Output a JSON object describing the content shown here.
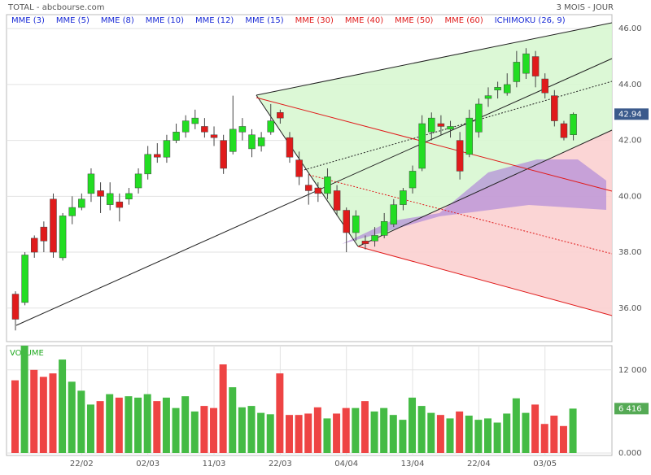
{
  "header": {
    "title": "TOTAL - abcbourse.com",
    "period": "3 MOIS - JOUR"
  },
  "legend": [
    {
      "name": "MME (3)",
      "color": "#1a2bd6"
    },
    {
      "name": "MME (5)",
      "color": "#1a2bd6"
    },
    {
      "name": "MME (8)",
      "color": "#1a2bd6"
    },
    {
      "name": "MME (10)",
      "color": "#1a2bd6"
    },
    {
      "name": "MME (12)",
      "color": "#1a2bd6"
    },
    {
      "name": "MME (15)",
      "color": "#1a2bd6"
    },
    {
      "name": "MME (30)",
      "color": "#e01b1b"
    },
    {
      "name": "MME (40)",
      "color": "#e01b1b"
    },
    {
      "name": "MME (50)",
      "color": "#e01b1b"
    },
    {
      "name": "MME (60)",
      "color": "#e01b1b"
    },
    {
      "name": "ICHIMOKU (26, 9)",
      "color": "#1a2bd6"
    }
  ],
  "chart_data": [
    {
      "type": "candlestick",
      "categories": [
        null,
        null,
        null,
        null,
        null,
        null,
        null,
        "22/02",
        null,
        null,
        null,
        null,
        null,
        null,
        "02/03",
        null,
        null,
        null,
        null,
        null,
        null,
        "11/03",
        null,
        null,
        null,
        null,
        null,
        null,
        "22/03",
        null,
        null,
        null,
        null,
        null,
        null,
        "04/04",
        null,
        null,
        null,
        null,
        null,
        null,
        "13/04",
        null,
        null,
        null,
        null,
        null,
        null,
        "22/04",
        null,
        null,
        null,
        null,
        null,
        null,
        "03/05",
        null,
        null,
        null
      ],
      "open": [
        36.5,
        36.2,
        38.5,
        38.9,
        39.9,
        37.8,
        39.3,
        39.6,
        40.1,
        40.2,
        39.7,
        39.8,
        39.9,
        40.3,
        40.8,
        41.5,
        41.4,
        42.0,
        42.3,
        42.6,
        42.5,
        42.2,
        42.0,
        41.6,
        42.3,
        41.7,
        41.8,
        42.3,
        43.0,
        42.1,
        41.3,
        40.4,
        40.3,
        40.1,
        40.2,
        39.5,
        38.7,
        38.4,
        38.4,
        38.6,
        39.0,
        39.7,
        40.3,
        41.0,
        42.3,
        42.6,
        42.4,
        42.0,
        41.5,
        42.3,
        43.5,
        43.8,
        43.7,
        44.1,
        44.4,
        45.0,
        44.2,
        43.6,
        42.6,
        42.2
      ],
      "high": [
        36.6,
        38.0,
        38.6,
        39.1,
        40.1,
        39.4,
        40.0,
        40.1,
        41.0,
        40.5,
        40.5,
        40.1,
        40.3,
        41.0,
        41.8,
        41.9,
        42.2,
        42.6,
        42.9,
        43.1,
        42.8,
        42.5,
        42.2,
        43.6,
        42.8,
        42.4,
        42.3,
        43.3,
        43.1,
        42.3,
        41.6,
        40.8,
        40.5,
        41.0,
        40.4,
        39.6,
        39.5,
        38.6,
        38.9,
        39.4,
        39.9,
        40.3,
        41.1,
        42.9,
        43.0,
        42.9,
        42.7,
        42.3,
        43.1,
        43.5,
        43.9,
        44.1,
        44.4,
        45.2,
        45.3,
        45.2,
        44.4,
        43.8,
        42.7,
        43.0
      ],
      "low": [
        35.2,
        36.1,
        37.8,
        38.0,
        37.8,
        37.7,
        39.0,
        39.5,
        39.8,
        39.4,
        39.5,
        39.1,
        39.7,
        40.1,
        40.6,
        41.2,
        41.2,
        41.9,
        42.1,
        42.4,
        42.1,
        41.8,
        40.8,
        41.5,
        42.0,
        41.4,
        41.6,
        42.2,
        42.6,
        41.2,
        40.4,
        39.7,
        39.8,
        39.9,
        39.3,
        38.0,
        38.4,
        38.1,
        38.2,
        38.5,
        38.9,
        39.5,
        40.1,
        40.9,
        42.0,
        42.2,
        42.1,
        40.6,
        41.4,
        42.1,
        43.2,
        43.5,
        43.6,
        43.9,
        44.2,
        43.9,
        43.5,
        42.5,
        42.0,
        42.0
      ],
      "close": [
        35.6,
        37.9,
        38.0,
        38.4,
        38.0,
        39.3,
        39.6,
        39.9,
        40.8,
        40.0,
        40.1,
        39.6,
        40.1,
        40.8,
        41.5,
        41.4,
        42.0,
        42.3,
        42.7,
        42.8,
        42.3,
        42.1,
        41.0,
        42.4,
        42.5,
        42.2,
        42.1,
        42.7,
        42.8,
        41.4,
        40.7,
        40.2,
        40.1,
        40.7,
        39.5,
        38.7,
        39.3,
        38.3,
        38.6,
        39.1,
        39.7,
        40.2,
        40.9,
        42.6,
        42.8,
        42.5,
        42.5,
        40.9,
        42.8,
        43.3,
        43.6,
        43.9,
        44.0,
        44.8,
        45.1,
        44.3,
        43.7,
        42.7,
        42.1,
        42.94
      ],
      "up_color": "#22dd22",
      "down_color": "#e01b1b",
      "ylim": [
        34.8,
        46.5
      ],
      "yticks": [
        {
          "value": 36,
          "label": "36.00"
        },
        {
          "value": 38,
          "label": "38.00"
        },
        {
          "value": 40,
          "label": "40.00"
        },
        {
          "value": 42,
          "label": "42.00"
        },
        {
          "value": 44,
          "label": "44.00"
        },
        {
          "value": 46,
          "label": "46.00"
        }
      ],
      "last_price": {
        "value": 42.94,
        "label": "42.94"
      },
      "grid": true
    },
    {
      "type": "volume",
      "title": "VOLUME",
      "values": [
        10500,
        15500,
        12000,
        11000,
        11500,
        13500,
        10300,
        9000,
        7000,
        7500,
        8500,
        8000,
        8200,
        8000,
        8500,
        7500,
        8000,
        6500,
        8200,
        6000,
        6800,
        6500,
        12800,
        9500,
        6600,
        6800,
        5800,
        5600,
        11500,
        5500,
        5500,
        5700,
        6600,
        5000,
        5700,
        6500,
        6500,
        7500,
        6000,
        6500,
        5500,
        4800,
        8000,
        6800,
        5800,
        5500,
        5000,
        6000,
        5400,
        4800,
        5000,
        4400,
        5700,
        7900,
        5800,
        7000,
        4200,
        5400,
        3900,
        6416
      ],
      "ylim": [
        0,
        15500
      ],
      "yticks": [
        {
          "value": 0,
          "label": "0.000"
        },
        {
          "value": 12000,
          "label": "12 000"
        }
      ],
      "last_value": {
        "value": 6416,
        "label": "6 416"
      },
      "grid": true
    }
  ]
}
